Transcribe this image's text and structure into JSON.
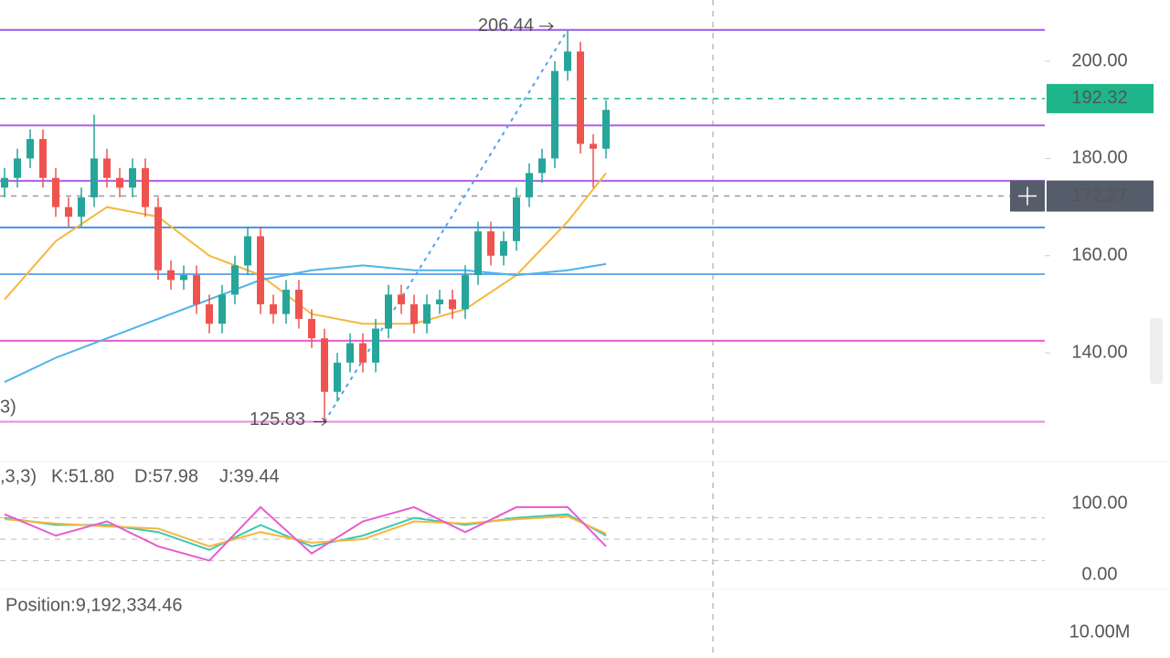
{
  "price": {
    "ylim": [
      118.6,
      212.6
    ],
    "yticks": [
      {
        "value": 200,
        "label": "200.00"
      },
      {
        "value": 180,
        "label": "180.00"
      },
      {
        "value": 160,
        "label": "160.00"
      },
      {
        "value": 140,
        "label": "140.00"
      }
    ],
    "candles": {
      "open": [
        174,
        176,
        180,
        184,
        176,
        170,
        168,
        172,
        180,
        176,
        174,
        178,
        170,
        157,
        155,
        156,
        150,
        146,
        152,
        158,
        164,
        150,
        148,
        153,
        147,
        143,
        132,
        138,
        142,
        138,
        145,
        152,
        150,
        146,
        150,
        151,
        149,
        156,
        165,
        160,
        163,
        172,
        177,
        180,
        198,
        202,
        183,
        182
      ],
      "high": [
        178,
        182,
        186,
        186,
        178,
        172,
        174,
        189,
        182,
        178,
        180,
        180,
        172,
        159,
        158,
        158,
        152,
        154,
        160,
        166,
        166,
        152,
        155,
        155,
        149,
        145,
        140,
        144,
        144,
        147,
        154,
        154,
        152,
        152,
        153,
        153,
        158,
        167,
        167,
        165,
        174,
        179,
        182,
        200,
        206.44,
        204,
        185,
        192
      ],
      "low": [
        172,
        174,
        178,
        174,
        168,
        166,
        166,
        170,
        174,
        172,
        172,
        168,
        155,
        153,
        153,
        148,
        144,
        144,
        150,
        156,
        148,
        146,
        146,
        145,
        141,
        125.83,
        130,
        136,
        136,
        136,
        143,
        148,
        144,
        144,
        148,
        147,
        147,
        154,
        158,
        158,
        161,
        170,
        175,
        178,
        196,
        181,
        174,
        180
      ],
      "close": [
        176,
        180,
        184,
        176,
        170,
        168,
        172,
        180,
        176,
        174,
        178,
        170,
        157,
        155,
        156,
        150,
        146,
        152,
        158,
        164,
        150,
        148,
        153,
        147,
        143,
        132,
        138,
        142,
        138,
        145,
        152,
        150,
        146,
        150,
        151,
        149,
        156,
        165,
        160,
        163,
        172,
        177,
        180,
        198,
        202,
        183,
        182,
        190
      ],
      "up_color": "#26a69a",
      "down_color": "#ef5350"
    },
    "ma": {
      "x": [
        0,
        4,
        8,
        12,
        16,
        20,
        24,
        28,
        32,
        36,
        40,
        44,
        47
      ],
      "series": [
        {
          "color": "#f5b73b",
          "values": [
            151,
            163,
            170,
            168,
            160,
            156,
            148,
            146,
            146,
            149,
            156,
            167,
            177
          ]
        },
        {
          "color": "#4fb3e8",
          "values": [
            134,
            139,
            143,
            147,
            151,
            155,
            157,
            158,
            157,
            157,
            156,
            157,
            158.3
          ]
        }
      ]
    },
    "levels": [
      {
        "value": 206.44,
        "color": "#9b59f0"
      },
      {
        "value": 186.8,
        "color": "#b15ee8"
      },
      {
        "value": 175.4,
        "color": "#b15ee8"
      },
      {
        "value": 165.8,
        "color": "#4a8fe8"
      },
      {
        "value": 156.2,
        "color": "#6aa8f0"
      },
      {
        "value": 142.5,
        "color": "#e85bd0"
      },
      {
        "value": 125.83,
        "color": "#e88ad8"
      }
    ],
    "last_price": {
      "value": 192.32,
      "label": "192.32",
      "color": "#1fb58a"
    },
    "crosshair": {
      "value": 172.27,
      "label": "172.27",
      "color": "#555d6b"
    },
    "fragment": "3)"
  },
  "kdj": {
    "ylim": [
      -20.5,
      159
    ],
    "yticks": [
      {
        "value": 100,
        "label": "100.00"
      },
      {
        "value": 0,
        "label": "0.00"
      }
    ],
    "levels": [
      80,
      50,
      20
    ],
    "params": ",3,3)",
    "x": [
      0,
      4,
      8,
      12,
      16,
      20,
      24,
      28,
      32,
      36,
      40,
      44,
      47
    ],
    "series": [
      {
        "label": "K:51.80",
        "color": "#3cc8b0",
        "values": [
          80,
          70,
          70,
          60,
          35,
          70,
          40,
          55,
          80,
          70,
          80,
          85,
          55
        ]
      },
      {
        "label": "D:57.98",
        "color": "#f5b73b",
        "values": [
          78,
          72,
          68,
          65,
          40,
          60,
          45,
          50,
          75,
          72,
          78,
          82,
          58
        ]
      },
      {
        "label": "J:39.44",
        "color": "#e85bd0",
        "values": [
          85,
          55,
          75,
          40,
          20,
          95,
          30,
          75,
          95,
          60,
          95,
          95,
          40
        ]
      }
    ]
  },
  "volume": {
    "title": "Position:9,192,334.46",
    "ylim": [
      0,
      25000000
    ],
    "yticks": [
      {
        "value": 10000000,
        "label": "10.00M"
      }
    ]
  }
}
